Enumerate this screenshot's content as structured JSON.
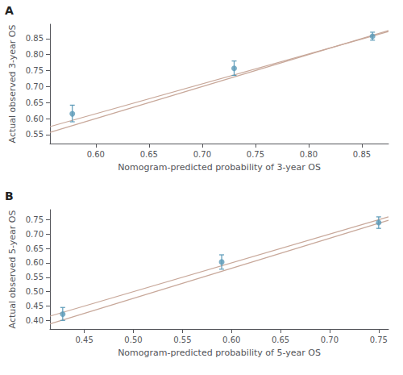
{
  "chart_data": [
    {
      "type": "scatter",
      "label": "A",
      "xlabel": "Nomogram-predicted probability of 3-year OS",
      "ylabel": "Actual observed 3-year OS",
      "xlim": [
        0.557,
        0.875
      ],
      "ylim": [
        0.522,
        0.895
      ],
      "xticks": [
        {
          "value": 0.6,
          "label": "0.60"
        },
        {
          "value": 0.65,
          "label": "0.65"
        },
        {
          "value": 0.7,
          "label": "0.70"
        },
        {
          "value": 0.75,
          "label": "0.75"
        },
        {
          "value": 0.8,
          "label": "0.80"
        },
        {
          "value": 0.85,
          "label": "0.85"
        }
      ],
      "yticks": [
        {
          "value": 0.55,
          "label": "0.55"
        },
        {
          "value": 0.6,
          "label": "0.60"
        },
        {
          "value": 0.65,
          "label": "0.65"
        },
        {
          "value": 0.7,
          "label": "0.70"
        },
        {
          "value": 0.75,
          "label": "0.75"
        },
        {
          "value": 0.8,
          "label": "0.80"
        },
        {
          "value": 0.85,
          "label": "0.85"
        }
      ],
      "grid": false,
      "series": [
        {
          "type": "line",
          "color": "#c8a89a",
          "x": [
            0.557,
            0.875
          ],
          "values": [
            0.557,
            0.875
          ]
        },
        {
          "type": "line",
          "color": "#c8a89a",
          "x": [
            0.557,
            0.875
          ],
          "values": [
            0.575,
            0.872
          ]
        },
        {
          "type": "scatter",
          "color": "#5b9ab8",
          "x": [
            0.578,
            0.73,
            0.86
          ],
          "values": [
            0.615,
            0.757,
            0.857
          ],
          "yerr_lower": [
            0.025,
            0.022,
            0.012
          ],
          "yerr_upper": [
            0.027,
            0.023,
            0.013
          ]
        }
      ]
    },
    {
      "type": "scatter",
      "label": "B",
      "xlabel": "Nomogram-predicted probability of 5-year OS",
      "ylabel": "Actual observed 5-year OS",
      "xlim": [
        0.415,
        0.76
      ],
      "ylim": [
        0.37,
        0.785
      ],
      "xticks": [
        {
          "value": 0.45,
          "label": "0.45"
        },
        {
          "value": 0.5,
          "label": "0.50"
        },
        {
          "value": 0.55,
          "label": "0.55"
        },
        {
          "value": 0.6,
          "label": "0.60"
        },
        {
          "value": 0.65,
          "label": "0.65"
        },
        {
          "value": 0.7,
          "label": "0.70"
        },
        {
          "value": 0.75,
          "label": "0.75"
        }
      ],
      "yticks": [
        {
          "value": 0.4,
          "label": "0.40"
        },
        {
          "value": 0.45,
          "label": "0.45"
        },
        {
          "value": 0.5,
          "label": "0.50"
        },
        {
          "value": 0.55,
          "label": "0.55"
        },
        {
          "value": 0.6,
          "label": "0.60"
        },
        {
          "value": 0.65,
          "label": "0.65"
        },
        {
          "value": 0.7,
          "label": "0.70"
        },
        {
          "value": 0.75,
          "label": "0.75"
        }
      ],
      "grid": false,
      "series": [
        {
          "type": "line",
          "color": "#c8a89a",
          "x": [
            0.415,
            0.76
          ],
          "values": [
            0.415,
            0.76
          ]
        },
        {
          "type": "line",
          "color": "#c8a89a",
          "x": [
            0.415,
            0.76
          ],
          "values": [
            0.388,
            0.748
          ]
        },
        {
          "type": "scatter",
          "color": "#5b9ab8",
          "x": [
            0.428,
            0.59,
            0.75
          ],
          "values": [
            0.422,
            0.603,
            0.74
          ],
          "yerr_lower": [
            0.022,
            0.025,
            0.02
          ],
          "yerr_upper": [
            0.023,
            0.025,
            0.02
          ]
        }
      ]
    }
  ]
}
